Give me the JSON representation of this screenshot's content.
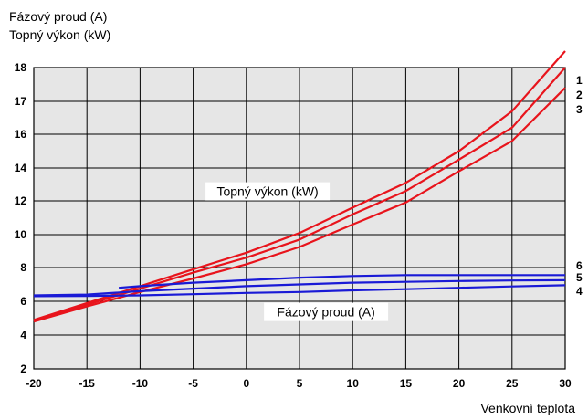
{
  "chart_data": {
    "type": "line",
    "ylabel_lines": [
      "Fázový proud (A)",
      "Topný výkon (kW)"
    ],
    "xlabel": "Venkovní teplota",
    "xlim": [
      -20,
      30
    ],
    "ylim": [
      2,
      18
    ],
    "x_ticks": [
      "-20",
      "-15",
      "-10",
      "-5",
      "0",
      "5",
      "10",
      "15",
      "20",
      "25",
      "30"
    ],
    "y_ticks": [
      {
        "value": 2,
        "label": "2"
      },
      {
        "value": 4,
        "label": "4"
      },
      {
        "value": 6,
        "label": "6"
      },
      {
        "value": 8,
        "label": "8"
      },
      {
        "value": 10,
        "label": "10"
      },
      {
        "value": 12,
        "label": "12"
      },
      {
        "value": 14,
        "label": "14"
      },
      {
        "value": 16,
        "label": "16"
      },
      {
        "value": 17,
        "label": "17"
      },
      {
        "value": 18,
        "label": "18"
      }
    ],
    "grid": true,
    "annotations": [
      {
        "text": "Topný výkon (kW)",
        "x": 2,
        "y": 12.3
      },
      {
        "text": "Fázový proud (A)",
        "x": 7.5,
        "y": 5.1
      }
    ],
    "series": [
      {
        "name": "1",
        "color": "#e8141c",
        "x": [
          -20,
          -15,
          -10,
          -5,
          0,
          5,
          10,
          15,
          20,
          25,
          30
        ],
        "y": [
          4.9,
          5.9,
          6.9,
          7.9,
          8.9,
          10.1,
          11.6,
          13.1,
          15.0,
          16.7,
          18.5
        ]
      },
      {
        "name": "2",
        "color": "#e8141c",
        "x": [
          -20,
          -15,
          -10,
          -5,
          0,
          5,
          10,
          15,
          20,
          25,
          30
        ],
        "y": [
          4.85,
          5.8,
          6.75,
          7.7,
          8.6,
          9.7,
          11.2,
          12.6,
          14.5,
          16.2,
          18.0
        ]
      },
      {
        "name": "3",
        "color": "#e8141c",
        "x": [
          -20,
          -15,
          -10,
          -5,
          0,
          5,
          10,
          15,
          20,
          25,
          30
        ],
        "y": [
          4.8,
          5.7,
          6.55,
          7.35,
          8.2,
          9.25,
          10.6,
          11.9,
          13.8,
          15.6,
          17.4
        ]
      },
      {
        "name": "4",
        "color": "#1a1ad6",
        "x": [
          -20,
          -15,
          -10,
          -5,
          0,
          5,
          10,
          15,
          20,
          25,
          30
        ],
        "y": [
          6.3,
          6.32,
          6.35,
          6.42,
          6.5,
          6.55,
          6.65,
          6.72,
          6.8,
          6.88,
          6.95
        ]
      },
      {
        "name": "5",
        "color": "#1a1ad6",
        "x": [
          -20,
          -15,
          -10,
          -5,
          0,
          5,
          10,
          15,
          20,
          25,
          30
        ],
        "y": [
          6.35,
          6.4,
          6.6,
          6.75,
          6.9,
          7.0,
          7.1,
          7.15,
          7.2,
          7.23,
          7.25
        ]
      },
      {
        "name": "6",
        "color": "#1a1ad6",
        "x": [
          -12,
          -10,
          -5,
          0,
          5,
          10,
          15,
          20,
          25,
          30
        ],
        "y": [
          6.8,
          6.9,
          7.1,
          7.25,
          7.4,
          7.5,
          7.55,
          7.55,
          7.55,
          7.55
        ]
      }
    ]
  }
}
